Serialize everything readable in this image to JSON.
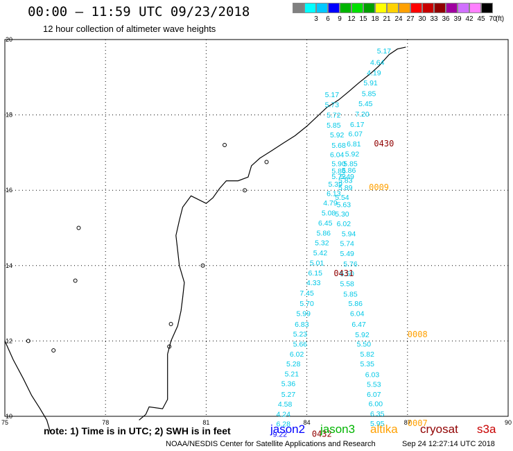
{
  "header": {
    "title": "00:00 — 11:59 UTC 09/23/2018",
    "subtitle": "12 hour collection of altimeter wave heights"
  },
  "colorbar": {
    "unit": "(ft)",
    "bins": [
      {
        "label": "",
        "color": "#808080"
      },
      {
        "label": "3",
        "color": "#00ffff"
      },
      {
        "label": "6",
        "color": "#00c8ff"
      },
      {
        "label": "9",
        "color": "#0000ff"
      },
      {
        "label": "12",
        "color": "#00b400"
      },
      {
        "label": "15",
        "color": "#00e000"
      },
      {
        "label": "18",
        "color": "#00a000"
      },
      {
        "label": "21",
        "color": "#ffff00"
      },
      {
        "label": "24",
        "color": "#ffd200"
      },
      {
        "label": "27",
        "color": "#ffa000"
      },
      {
        "label": "30",
        "color": "#ff0000"
      },
      {
        "label": "33",
        "color": "#c80000"
      },
      {
        "label": "36",
        "color": "#900000"
      },
      {
        "label": "39",
        "color": "#a000a0"
      },
      {
        "label": "42",
        "color": "#d070ff"
      },
      {
        "label": "45",
        "color": "#ff80ff"
      },
      {
        "label": "70",
        "color": "#000000"
      }
    ]
  },
  "axes": {
    "lon_ticks": [
      "75",
      "78",
      "81",
      "84",
      "87",
      "90"
    ],
    "lat_ticks": [
      "10",
      "12",
      "14",
      "16",
      "18",
      "20"
    ],
    "lon_range": [
      75,
      90
    ],
    "lat_range": [
      10,
      20
    ]
  },
  "colors": {
    "jason2": "#0000ff",
    "jason3": "#00b400",
    "altika": "#ffa000",
    "cryosat": "#900000",
    "s3a": "#c80000",
    "obs": "#00c8e6",
    "obs_dark": "#0096d2",
    "obs_blue": "#0000ff"
  },
  "tracks": [
    {
      "satellite": "s3a-desc",
      "points": [
        {
          "lon": 86.3,
          "lat": 19.63,
          "v": "5.17"
        },
        {
          "lon": 86.1,
          "lat": 19.33,
          "v": "4.64"
        },
        {
          "lon": 86.0,
          "lat": 19.05,
          "v": "4.19"
        },
        {
          "lon": 85.9,
          "lat": 18.78,
          "v": "5.91"
        },
        {
          "lon": 85.85,
          "lat": 18.5,
          "v": "5.85"
        },
        {
          "lon": 85.75,
          "lat": 18.23,
          "v": "5.45"
        },
        {
          "lon": 85.65,
          "lat": 17.96,
          "v": "7.20"
        },
        {
          "lon": 85.5,
          "lat": 17.68,
          "v": "6.17"
        },
        {
          "lon": 85.45,
          "lat": 17.43,
          "v": "6.07"
        },
        {
          "lon": 85.4,
          "lat": 17.16,
          "v": "6.81"
        },
        {
          "lon": 85.35,
          "lat": 16.9,
          "v": "5.92"
        },
        {
          "lon": 85.3,
          "lat": 16.64,
          "v": "5.85"
        },
        {
          "lon": 85.25,
          "lat": 16.46,
          "v": "5.86"
        },
        {
          "lon": 85.2,
          "lat": 16.3,
          "v": "5.49"
        },
        {
          "lon": 85.15,
          "lat": 16.2,
          "v": "5.83"
        },
        {
          "lon": 85.15,
          "lat": 16.0,
          "v": "5.89"
        },
        {
          "lon": 85.05,
          "lat": 15.75,
          "v": "5.54"
        },
        {
          "lon": 85.1,
          "lat": 15.55,
          "v": "5.63"
        },
        {
          "lon": 85.05,
          "lat": 15.3,
          "v": "5.30"
        },
        {
          "lon": 85.1,
          "lat": 15.05,
          "v": "6.02"
        },
        {
          "lon": 85.25,
          "lat": 14.78,
          "v": "5.94"
        },
        {
          "lon": 85.2,
          "lat": 14.52,
          "v": "5.74"
        },
        {
          "lon": 85.2,
          "lat": 14.25,
          "v": "5.49"
        },
        {
          "lon": 85.3,
          "lat": 13.98,
          "v": "5.76"
        },
        {
          "lon": 85.2,
          "lat": 13.72,
          "v": "5.50"
        },
        {
          "lon": 85.2,
          "lat": 13.45,
          "v": "5.58"
        },
        {
          "lon": 85.3,
          "lat": 13.18,
          "v": "5.85"
        },
        {
          "lon": 85.45,
          "lat": 12.93,
          "v": "5.86"
        },
        {
          "lon": 85.5,
          "lat": 12.66,
          "v": "6.04"
        },
        {
          "lon": 85.55,
          "lat": 12.38,
          "v": "6.47"
        },
        {
          "lon": 85.65,
          "lat": 12.1,
          "v": "5.92"
        },
        {
          "lon": 85.7,
          "lat": 11.85,
          "v": "5.50"
        },
        {
          "lon": 85.8,
          "lat": 11.58,
          "v": "5.82"
        },
        {
          "lon": 85.8,
          "lat": 11.33,
          "v": "5.35"
        },
        {
          "lon": 85.95,
          "lat": 11.04,
          "v": "6.03"
        },
        {
          "lon": 86.0,
          "lat": 10.78,
          "v": "5.53"
        },
        {
          "lon": 86.0,
          "lat": 10.52,
          "v": "6.07"
        },
        {
          "lon": 86.05,
          "lat": 10.27,
          "v": "6.00"
        },
        {
          "lon": 86.1,
          "lat": 10.0,
          "v": "6.35"
        },
        {
          "lon": 86.1,
          "lat": 9.74,
          "v": "5.95"
        }
      ]
    },
    {
      "satellite": "s3a-asc",
      "points": [
        {
          "lon": 84.75,
          "lat": 18.47,
          "v": "5.17"
        },
        {
          "lon": 84.75,
          "lat": 18.2,
          "v": "5.73"
        },
        {
          "lon": 84.8,
          "lat": 17.93,
          "v": "5.72"
        },
        {
          "lon": 84.8,
          "lat": 17.66,
          "v": "5.85"
        },
        {
          "lon": 84.9,
          "lat": 17.4,
          "v": "5.92"
        },
        {
          "lon": 84.95,
          "lat": 17.13,
          "v": "5.68"
        },
        {
          "lon": 84.9,
          "lat": 16.88,
          "v": "6.04"
        },
        {
          "lon": 84.95,
          "lat": 16.64,
          "v": "5.90"
        },
        {
          "lon": 84.95,
          "lat": 16.45,
          "v": "5.86"
        },
        {
          "lon": 84.95,
          "lat": 16.3,
          "v": "5.73"
        },
        {
          "lon": 84.85,
          "lat": 16.1,
          "v": "5.39"
        },
        {
          "lon": 84.8,
          "lat": 15.85,
          "v": "6.13"
        },
        {
          "lon": 84.7,
          "lat": 15.6,
          "v": "4.79"
        },
        {
          "lon": 84.65,
          "lat": 15.33,
          "v": "5.08"
        },
        {
          "lon": 84.55,
          "lat": 15.06,
          "v": "6.45"
        },
        {
          "lon": 84.5,
          "lat": 14.8,
          "v": "5.86"
        },
        {
          "lon": 84.45,
          "lat": 14.54,
          "v": "5.32"
        },
        {
          "lon": 84.4,
          "lat": 14.27,
          "v": "5.42"
        },
        {
          "lon": 84.3,
          "lat": 14.01,
          "v": "5.01"
        },
        {
          "lon": 84.25,
          "lat": 13.74,
          "v": "6.15"
        },
        {
          "lon": 84.2,
          "lat": 13.48,
          "v": "4.33"
        },
        {
          "lon": 84.0,
          "lat": 13.2,
          "v": "7.45"
        },
        {
          "lon": 84.0,
          "lat": 12.93,
          "v": "5.70"
        },
        {
          "lon": 83.9,
          "lat": 12.66,
          "v": "5.99"
        },
        {
          "lon": 83.85,
          "lat": 12.38,
          "v": "6.83"
        },
        {
          "lon": 83.8,
          "lat": 12.12,
          "v": "5.23"
        },
        {
          "lon": 83.8,
          "lat": 11.85,
          "v": "5.66"
        },
        {
          "lon": 83.7,
          "lat": 11.58,
          "v": "6.02"
        },
        {
          "lon": 83.6,
          "lat": 11.33,
          "v": "5.28"
        },
        {
          "lon": 83.55,
          "lat": 11.06,
          "v": "5.21"
        },
        {
          "lon": 83.45,
          "lat": 10.8,
          "v": "5.36"
        },
        {
          "lon": 83.45,
          "lat": 10.52,
          "v": "5.27"
        },
        {
          "lon": 83.35,
          "lat": 10.26,
          "v": "4.58"
        },
        {
          "lon": 83.3,
          "lat": 9.99,
          "v": "4.24"
        },
        {
          "lon": 83.3,
          "lat": 9.73,
          "v": "6.28"
        },
        {
          "lon": 83.2,
          "lat": 9.46,
          "v": "9.22",
          "c": "obs_blue"
        }
      ]
    }
  ],
  "time_labels": [
    {
      "text": "0430",
      "lon": 86.0,
      "lat": 17.16,
      "c": "cryosat"
    },
    {
      "text": "0009",
      "lon": 85.85,
      "lat": 16.0,
      "c": "altika"
    },
    {
      "text": "0431",
      "lon": 84.8,
      "lat": 13.72,
      "c": "cryosat"
    },
    {
      "text": "0008",
      "lon": 87.0,
      "lat": 12.1,
      "c": "altika"
    },
    {
      "text": "0432",
      "lon": 84.15,
      "lat": 9.46,
      "c": "cryosat"
    },
    {
      "text": "0007",
      "lon": 87.0,
      "lat": 9.74,
      "c": "altika"
    }
  ],
  "footer": {
    "note": "note:  1) Time is in UTC;  2) SWH is in feet",
    "legend": [
      {
        "key": "jason2",
        "label": "jason2"
      },
      {
        "key": "jason3",
        "label": "jason3"
      },
      {
        "key": "altika",
        "label": "altika"
      },
      {
        "key": "cryosat",
        "label": "cryosat"
      },
      {
        "key": "s3a",
        "label": "s3a"
      }
    ],
    "credit": "NOAA/NESDIS Center for Satellite Applications and Research",
    "timestamp": "Sep 24 12:27:14 UTC 2018"
  }
}
